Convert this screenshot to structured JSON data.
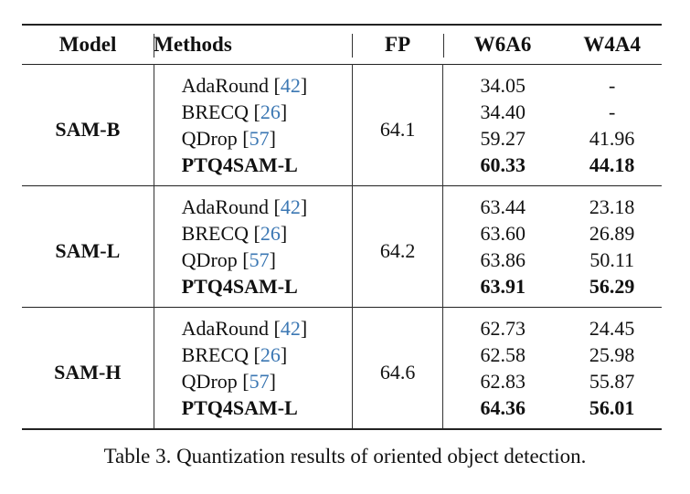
{
  "table": {
    "headers": [
      "Model",
      "Methods",
      "FP",
      "W6A6",
      "W4A4"
    ],
    "groups": [
      {
        "model": "SAM-B",
        "fp": "64.1",
        "rows": [
          {
            "method": "AdaRound",
            "cite": "42",
            "w6a6": "34.05",
            "w4a4": "-",
            "bold": false
          },
          {
            "method": "BRECQ",
            "cite": "26",
            "w6a6": "34.40",
            "w4a4": "-",
            "bold": false
          },
          {
            "method": "QDrop",
            "cite": "57",
            "w6a6": "59.27",
            "w4a4": "41.96",
            "bold": false
          },
          {
            "method": "PTQ4SAM-L",
            "cite": "",
            "w6a6": "60.33",
            "w4a4": "44.18",
            "bold": true
          }
        ]
      },
      {
        "model": "SAM-L",
        "fp": "64.2",
        "rows": [
          {
            "method": "AdaRound",
            "cite": "42",
            "w6a6": "63.44",
            "w4a4": "23.18",
            "bold": false
          },
          {
            "method": "BRECQ",
            "cite": "26",
            "w6a6": "63.60",
            "w4a4": "26.89",
            "bold": false
          },
          {
            "method": "QDrop",
            "cite": "57",
            "w6a6": "63.86",
            "w4a4": "50.11",
            "bold": false
          },
          {
            "method": "PTQ4SAM-L",
            "cite": "",
            "w6a6": "63.91",
            "w4a4": "56.29",
            "bold": true
          }
        ]
      },
      {
        "model": "SAM-H",
        "fp": "64.6",
        "rows": [
          {
            "method": "AdaRound",
            "cite": "42",
            "w6a6": "62.73",
            "w4a4": "24.45",
            "bold": false
          },
          {
            "method": "BRECQ",
            "cite": "26",
            "w6a6": "62.58",
            "w4a4": "25.98",
            "bold": false
          },
          {
            "method": "QDrop",
            "cite": "57",
            "w6a6": "62.83",
            "w4a4": "55.87",
            "bold": false
          },
          {
            "method": "PTQ4SAM-L",
            "cite": "",
            "w6a6": "64.36",
            "w4a4": "56.01",
            "bold": true
          }
        ]
      }
    ]
  },
  "caption": "Table 3. Quantization results of oriented object detection."
}
